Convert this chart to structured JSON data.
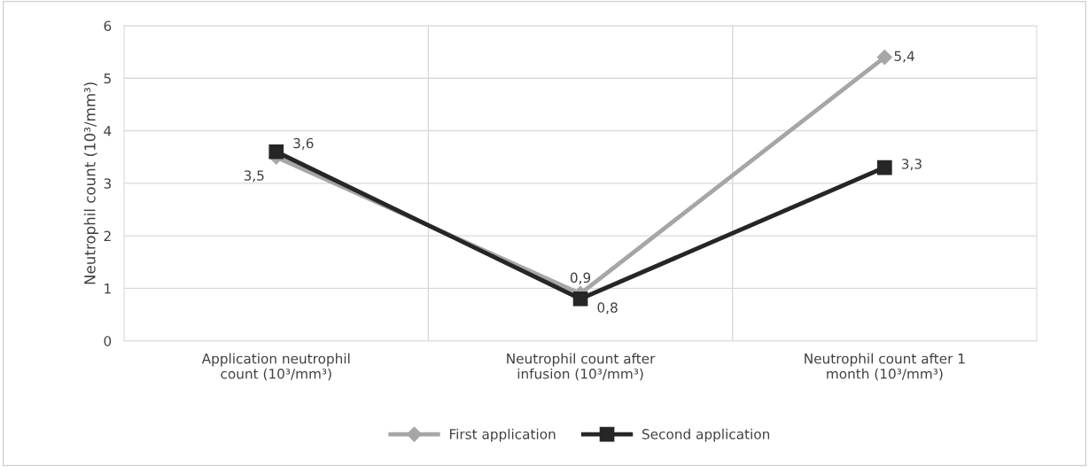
{
  "chart_data": {
    "type": "line",
    "ylabel": "Neutrophil count (10³/mm³)",
    "categories": [
      "Application neutrophil count (10³/mm³)",
      "Neutrophil count after infusion (10³/mm³)",
      "Neutrophil count after 1 month (10³/mm³)"
    ],
    "series": [
      {
        "name": "First application",
        "color": "#a6a6a6",
        "marker": "diamond",
        "values": [
          3.5,
          0.9,
          5.4
        ],
        "value_labels": [
          "3,5",
          "0,9",
          "5,4"
        ]
      },
      {
        "name": "Second application",
        "color": "#262626",
        "marker": "square",
        "values": [
          3.6,
          0.8,
          3.3
        ],
        "value_labels": [
          "3,6",
          "0,8",
          "3,3"
        ]
      }
    ],
    "ylim": [
      0,
      6
    ],
    "yticks": [
      0,
      1,
      2,
      3,
      4,
      5,
      6
    ],
    "grid": true,
    "legend": "bottom",
    "line_style": "solid"
  }
}
